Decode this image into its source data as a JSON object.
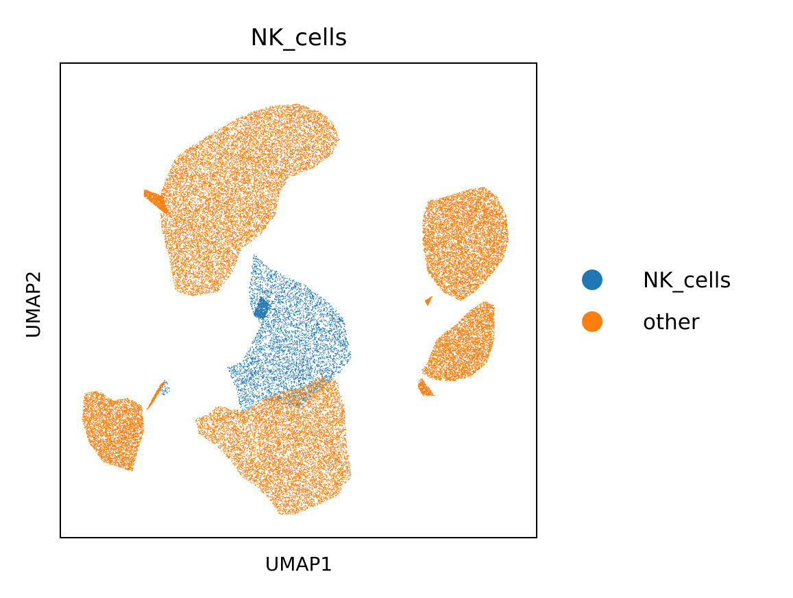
{
  "chart_data": {
    "type": "scatter",
    "title": "NK_cells",
    "xlabel": "UMAP1",
    "ylabel": "UMAP2",
    "xlim": [
      0,
      100
    ],
    "ylim": [
      0,
      100
    ],
    "xticks": [],
    "yticks": [],
    "grid": false,
    "legend_position": "right",
    "legend": [
      {
        "name": "NK_cells",
        "color": "#1f77b4"
      },
      {
        "name": "other",
        "color": "#ff7f0e"
      }
    ],
    "clusters": [
      {
        "category": "other",
        "shape": "poly",
        "n": 14000,
        "poly": [
          [
            21,
            73
          ],
          [
            24,
            80
          ],
          [
            28,
            83
          ],
          [
            33,
            86
          ],
          [
            38,
            89
          ],
          [
            44,
            91
          ],
          [
            50,
            91.5
          ],
          [
            54,
            90
          ],
          [
            57,
            88
          ],
          [
            58.5,
            84
          ],
          [
            57,
            81
          ],
          [
            53,
            78
          ],
          [
            48,
            76
          ],
          [
            46,
            73
          ],
          [
            45,
            68
          ],
          [
            42,
            64
          ],
          [
            38,
            61
          ],
          [
            36,
            56
          ],
          [
            33,
            52
          ],
          [
            28,
            51
          ],
          [
            24,
            52
          ],
          [
            23,
            58
          ],
          [
            22,
            62
          ],
          [
            21,
            66
          ]
        ]
      },
      {
        "category": "other",
        "shape": "poly",
        "n": 800,
        "poly": [
          [
            17.5,
            73.5
          ],
          [
            21.5,
            72
          ],
          [
            22.5,
            68
          ],
          [
            20,
            70
          ],
          [
            17.5,
            72
          ]
        ]
      },
      {
        "category": "NK_cells",
        "shape": "poly",
        "n": 5200,
        "poly": [
          [
            40.5,
            60
          ],
          [
            43,
            57.5
          ],
          [
            47.5,
            55
          ],
          [
            52,
            53
          ],
          [
            57,
            49
          ],
          [
            59.5,
            46
          ],
          [
            61,
            38
          ],
          [
            58,
            34
          ],
          [
            54,
            31
          ],
          [
            50,
            27.5
          ],
          [
            46,
            28.5
          ],
          [
            42,
            29
          ],
          [
            38,
            26
          ],
          [
            37,
            31
          ],
          [
            35,
            36
          ],
          [
            38,
            37
          ],
          [
            40,
            41
          ],
          [
            42,
            45
          ],
          [
            40,
            48
          ],
          [
            39.5,
            52
          ]
        ]
      },
      {
        "category": "other",
        "shape": "poly",
        "n": 9500,
        "poly": [
          [
            39,
            27
          ],
          [
            43,
            29.5
          ],
          [
            47,
            31
          ],
          [
            51,
            32
          ],
          [
            55,
            34
          ],
          [
            58,
            33
          ],
          [
            59.5,
            28
          ],
          [
            60,
            20
          ],
          [
            61,
            13
          ],
          [
            58,
            9
          ],
          [
            54,
            7
          ],
          [
            49,
            5
          ],
          [
            46,
            5
          ],
          [
            44,
            8
          ],
          [
            41,
            11
          ],
          [
            38,
            13
          ],
          [
            36,
            16
          ],
          [
            32,
            20
          ],
          [
            29,
            22
          ],
          [
            28,
            25
          ],
          [
            31,
            26
          ],
          [
            33,
            28
          ],
          [
            36,
            27
          ]
        ]
      },
      {
        "category": "other",
        "shape": "poly",
        "n": 7500,
        "poly": [
          [
            77,
            71
          ],
          [
            81,
            72
          ],
          [
            86,
            73.5
          ],
          [
            89,
            74
          ],
          [
            91.5,
            72
          ],
          [
            93.5,
            68
          ],
          [
            94,
            63
          ],
          [
            93,
            59
          ],
          [
            90,
            55
          ],
          [
            87,
            52
          ],
          [
            84,
            50
          ],
          [
            80,
            52
          ],
          [
            77,
            56
          ],
          [
            76,
            62
          ],
          [
            76,
            67
          ]
        ]
      },
      {
        "category": "other",
        "shape": "poly",
        "n": 4200,
        "poly": [
          [
            77,
            37
          ],
          [
            79,
            42
          ],
          [
            83,
            45
          ],
          [
            86,
            48
          ],
          [
            89,
            50
          ],
          [
            91,
            49
          ],
          [
            91,
            42
          ],
          [
            89.5,
            37
          ],
          [
            86,
            34
          ],
          [
            82,
            33
          ],
          [
            78,
            33.5
          ],
          [
            75.5,
            35
          ]
        ]
      },
      {
        "category": "other",
        "shape": "poly",
        "n": 300,
        "poly": [
          [
            75.5,
            34
          ],
          [
            77,
            32
          ],
          [
            78.5,
            30
          ],
          [
            76,
            30
          ],
          [
            75,
            32
          ]
        ]
      },
      {
        "category": "other",
        "shape": "poly",
        "n": 4200,
        "poly": [
          [
            5,
            30.5
          ],
          [
            8,
            31
          ],
          [
            11,
            29
          ],
          [
            14,
            29.5
          ],
          [
            17,
            28
          ],
          [
            17.5,
            23
          ],
          [
            16,
            18
          ],
          [
            15,
            14
          ],
          [
            12,
            15
          ],
          [
            9,
            16
          ],
          [
            6,
            20
          ],
          [
            4.5,
            25
          ]
        ]
      },
      {
        "category": "other",
        "shape": "poly",
        "n": 250,
        "poly": [
          [
            18,
            27
          ],
          [
            21,
            32.5
          ],
          [
            22,
            33
          ],
          [
            19,
            28
          ]
        ]
      },
      {
        "category": "NK_cells",
        "shape": "poly",
        "n": 40,
        "poly": [
          [
            20.5,
            31
          ],
          [
            22,
            33.5
          ],
          [
            23,
            31
          ],
          [
            21.5,
            30
          ]
        ]
      },
      {
        "category": "NK_cells",
        "shape": "poly",
        "n": 500,
        "poly": [
          [
            40.5,
            47
          ],
          [
            42,
            51
          ],
          [
            44,
            49
          ],
          [
            42.5,
            46
          ]
        ]
      },
      {
        "category": "other",
        "shape": "poly",
        "n": 200,
        "poly": [
          [
            76.5,
            50
          ],
          [
            78,
            51
          ],
          [
            77,
            49
          ]
        ]
      }
    ]
  }
}
